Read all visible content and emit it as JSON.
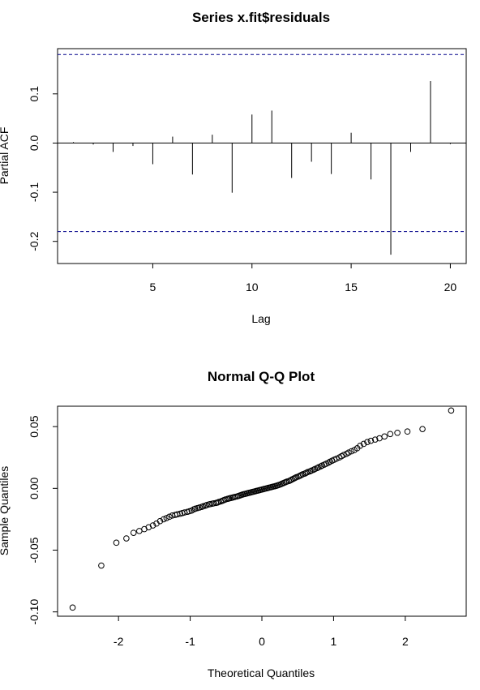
{
  "chart_data": [
    {
      "type": "bar",
      "subtype": "pacf",
      "title": "Series  x.fit$residuals",
      "xlabel": "Lag",
      "ylabel": "Partial ACF",
      "xlim": [
        0.2,
        20.8
      ],
      "ylim": [
        -0.245,
        0.192
      ],
      "x_ticks": [
        5,
        10,
        15,
        20
      ],
      "y_ticks": [
        -0.2,
        -0.1,
        0.0,
        0.1
      ],
      "y_tick_labels": [
        "-0.2",
        "-0.1",
        "0.0",
        "0.1"
      ],
      "confidence_bound": 0.18,
      "confidence_color": "#00008b",
      "lags": [
        1,
        2,
        3,
        4,
        5,
        6,
        7,
        8,
        9,
        10,
        11,
        12,
        13,
        14,
        15,
        16,
        17,
        18,
        19,
        20
      ],
      "values": [
        0.002,
        -0.003,
        -0.018,
        -0.006,
        -0.043,
        0.013,
        -0.064,
        0.017,
        -0.101,
        0.058,
        0.066,
        -0.071,
        -0.038,
        -0.063,
        0.021,
        -0.074,
        -0.227,
        -0.018,
        0.126,
        -0.002
      ],
      "grid": false,
      "legend": "none"
    },
    {
      "type": "scatter",
      "subtype": "qq",
      "title": "Normal Q-Q Plot",
      "xlabel": "Theoretical Quantiles",
      "ylabel": "Sample Quantiles",
      "xlim": [
        -2.85,
        2.85
      ],
      "ylim": [
        -0.1035,
        0.0665
      ],
      "x_ticks": [
        -2,
        -1,
        0,
        1,
        2
      ],
      "y_ticks": [
        -0.1,
        -0.05,
        0.0,
        0.05
      ],
      "y_tick_labels": [
        "-0.10",
        "-0.05",
        "0.00",
        "0.05"
      ],
      "marker": "open-circle",
      "points_x": [
        -2.64,
        -2.24,
        -2.03,
        -1.89,
        -1.79,
        -1.71,
        -1.64,
        -1.58,
        -1.52,
        -1.47,
        -1.42,
        -1.37,
        -1.33,
        -1.29,
        -1.25,
        -1.21,
        -1.18,
        -1.14,
        -1.11,
        -1.08,
        -1.04,
        -1.01,
        -0.98,
        -0.95,
        -0.93,
        -0.9,
        -0.87,
        -0.84,
        -0.82,
        -0.79,
        -0.77,
        -0.74,
        -0.72,
        -0.69,
        -0.67,
        -0.64,
        -0.62,
        -0.6,
        -0.57,
        -0.55,
        -0.53,
        -0.51,
        -0.48,
        -0.46,
        -0.44,
        -0.42,
        -0.4,
        -0.38,
        -0.35,
        -0.33,
        -0.31,
        -0.29,
        -0.27,
        -0.25,
        -0.23,
        -0.21,
        -0.19,
        -0.17,
        -0.15,
        -0.13,
        -0.11,
        -0.09,
        -0.07,
        -0.05,
        -0.03,
        -0.01,
        0.01,
        0.03,
        0.05,
        0.07,
        0.09,
        0.11,
        0.13,
        0.15,
        0.17,
        0.19,
        0.21,
        0.23,
        0.25,
        0.27,
        0.29,
        0.31,
        0.33,
        0.35,
        0.38,
        0.4,
        0.42,
        0.44,
        0.46,
        0.48,
        0.51,
        0.53,
        0.55,
        0.57,
        0.6,
        0.62,
        0.64,
        0.67,
        0.69,
        0.72,
        0.74,
        0.77,
        0.79,
        0.82,
        0.84,
        0.87,
        0.9,
        0.93,
        0.95,
        0.98,
        1.01,
        1.04,
        1.08,
        1.11,
        1.14,
        1.18,
        1.21,
        1.25,
        1.29,
        1.33,
        1.37,
        1.42,
        1.47,
        1.52,
        1.58,
        1.64,
        1.71,
        1.79,
        1.89,
        2.03,
        2.24,
        2.64
      ],
      "points_y": [
        -0.0965,
        -0.0625,
        -0.044,
        -0.0405,
        -0.036,
        -0.0345,
        -0.033,
        -0.0315,
        -0.03,
        -0.0285,
        -0.0265,
        -0.025,
        -0.024,
        -0.023,
        -0.022,
        -0.0215,
        -0.021,
        -0.0205,
        -0.02,
        -0.0195,
        -0.019,
        -0.0185,
        -0.018,
        -0.017,
        -0.0165,
        -0.016,
        -0.0155,
        -0.015,
        -0.0145,
        -0.014,
        -0.0135,
        -0.013,
        -0.0127,
        -0.0124,
        -0.0121,
        -0.0118,
        -0.0115,
        -0.011,
        -0.0105,
        -0.01,
        -0.0095,
        -0.009,
        -0.0085,
        -0.0082,
        -0.0079,
        -0.0076,
        -0.0073,
        -0.007,
        -0.0066,
        -0.0062,
        -0.0058,
        -0.0054,
        -0.005,
        -0.0047,
        -0.0044,
        -0.0041,
        -0.0038,
        -0.0035,
        -0.0032,
        -0.0029,
        -0.0026,
        -0.0023,
        -0.002,
        -0.0017,
        -0.0014,
        -0.0011,
        -0.0008,
        -0.0005,
        -0.0002,
        0.0001,
        0.0004,
        0.0007,
        0.001,
        0.0013,
        0.0016,
        0.0019,
        0.0022,
        0.0026,
        0.003,
        0.0035,
        0.004,
        0.0045,
        0.005,
        0.0055,
        0.006,
        0.0066,
        0.0072,
        0.0078,
        0.0084,
        0.009,
        0.0096,
        0.0102,
        0.0108,
        0.0114,
        0.012,
        0.0126,
        0.0132,
        0.0138,
        0.0144,
        0.015,
        0.0157,
        0.0164,
        0.0171,
        0.0178,
        0.0185,
        0.0192,
        0.02,
        0.0208,
        0.0216,
        0.0224,
        0.0232,
        0.024,
        0.025,
        0.026,
        0.027,
        0.028,
        0.029,
        0.03,
        0.031,
        0.0325,
        0.0345,
        0.036,
        0.0375,
        0.0385,
        0.0395,
        0.0405,
        0.042,
        0.044,
        0.045,
        0.046,
        0.048,
        0.063
      ],
      "grid": false,
      "legend": "none"
    }
  ]
}
